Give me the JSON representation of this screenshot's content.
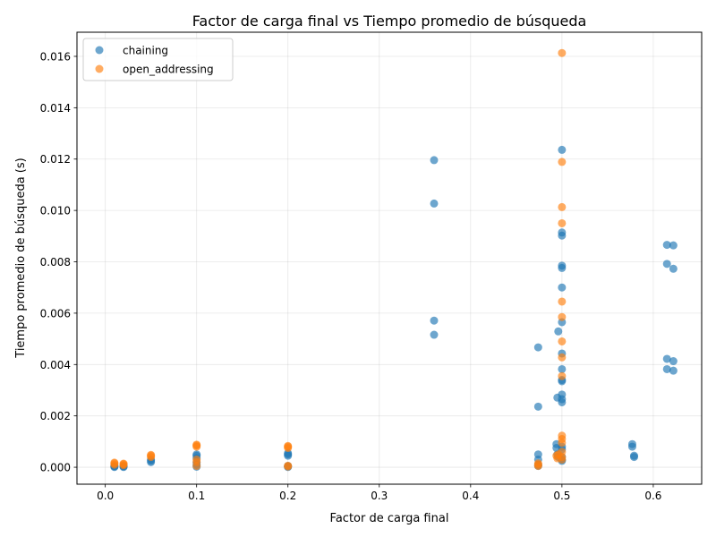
{
  "chart_data": {
    "type": "scatter",
    "title": "Factor de carga final vs Tiempo promedio de búsqueda",
    "xlabel": "Factor de carga final",
    "ylabel": "Tiempo promedio de búsqueda (s)",
    "xlim": [
      -0.031,
      0.653
    ],
    "ylim": [
      -0.00066,
      0.01694
    ],
    "xticks": [
      0.0,
      0.1,
      0.2,
      0.3,
      0.4,
      0.5,
      0.6
    ],
    "xtick_labels": [
      "0.0",
      "0.1",
      "0.2",
      "0.3",
      "0.4",
      "0.5",
      "0.6"
    ],
    "yticks": [
      0.0,
      0.002,
      0.004,
      0.006,
      0.008,
      0.01,
      0.012,
      0.014,
      0.016
    ],
    "ytick_labels": [
      "0.000",
      "0.002",
      "0.004",
      "0.006",
      "0.008",
      "0.010",
      "0.012",
      "0.014",
      "0.016"
    ],
    "grid": true,
    "legend_position": "top-left",
    "series": [
      {
        "name": "chaining",
        "color": "#1f77b4",
        "points": [
          [
            0.01,
            1e-05
          ],
          [
            0.01,
            3e-05
          ],
          [
            0.01,
            5e-05
          ],
          [
            0.02,
            1e-05
          ],
          [
            0.02,
            3e-05
          ],
          [
            0.02,
            5e-05
          ],
          [
            0.05,
            0.0002
          ],
          [
            0.05,
            0.00025
          ],
          [
            0.05,
            0.0003
          ],
          [
            0.1,
            2e-05
          ],
          [
            0.1,
            0.0001
          ],
          [
            0.1,
            0.0002
          ],
          [
            0.1,
            0.00035
          ],
          [
            0.1,
            0.00045
          ],
          [
            0.1,
            0.0005
          ],
          [
            0.2,
            1e-05
          ],
          [
            0.2,
            3e-05
          ],
          [
            0.2,
            5e-05
          ],
          [
            0.2,
            0.00045
          ],
          [
            0.2,
            0.0005
          ],
          [
            0.2,
            0.00055
          ],
          [
            0.36,
            0.01196
          ],
          [
            0.36,
            0.01027
          ],
          [
            0.36,
            0.00571
          ],
          [
            0.36,
            0.00516
          ],
          [
            0.474,
            0.00467
          ],
          [
            0.474,
            0.00236
          ],
          [
            0.474,
            0.0005
          ],
          [
            0.474,
            0.0003
          ],
          [
            0.474,
            0.0001
          ],
          [
            0.474,
            5e-05
          ],
          [
            0.496,
            0.00529
          ],
          [
            0.495,
            0.00271
          ],
          [
            0.494,
            0.0009
          ],
          [
            0.494,
            0.00075
          ],
          [
            0.495,
            0.0005
          ],
          [
            0.496,
            0.0004
          ],
          [
            0.5,
            0.01236
          ],
          [
            0.5,
            0.00914
          ],
          [
            0.5,
            0.00902
          ],
          [
            0.5,
            0.00785
          ],
          [
            0.5,
            0.00776
          ],
          [
            0.5,
            0.007
          ],
          [
            0.5,
            0.00565
          ],
          [
            0.5,
            0.00443
          ],
          [
            0.5,
            0.00382
          ],
          [
            0.5,
            0.0034
          ],
          [
            0.5,
            0.00335
          ],
          [
            0.5,
            0.00283
          ],
          [
            0.5,
            0.00265
          ],
          [
            0.5,
            0.00253
          ],
          [
            0.5,
            0.0008
          ],
          [
            0.5,
            0.0007
          ],
          [
            0.5,
            0.0004
          ],
          [
            0.5,
            0.0003
          ],
          [
            0.5,
            0.00025
          ],
          [
            0.577,
            0.0009
          ],
          [
            0.577,
            0.0008
          ],
          [
            0.579,
            0.00045
          ],
          [
            0.579,
            0.0004
          ],
          [
            0.615,
            0.00866
          ],
          [
            0.615,
            0.00792
          ],
          [
            0.615,
            0.00422
          ],
          [
            0.615,
            0.00382
          ],
          [
            0.622,
            0.00864
          ],
          [
            0.622,
            0.00773
          ],
          [
            0.622,
            0.00413
          ],
          [
            0.622,
            0.00376
          ]
        ]
      },
      {
        "name": "open_addressing",
        "color": "#ff7f0e",
        "points": [
          [
            0.01,
            0.0001
          ],
          [
            0.01,
            0.00015
          ],
          [
            0.01,
            0.00018
          ],
          [
            0.02,
            8e-05
          ],
          [
            0.02,
            0.00012
          ],
          [
            0.02,
            0.00014
          ],
          [
            0.05,
            0.0004
          ],
          [
            0.05,
            0.00045
          ],
          [
            0.05,
            0.00048
          ],
          [
            0.1,
            5e-05
          ],
          [
            0.1,
            0.0002
          ],
          [
            0.1,
            0.0003
          ],
          [
            0.1,
            0.0008
          ],
          [
            0.1,
            0.00085
          ],
          [
            0.1,
            0.00088
          ],
          [
            0.2,
            3e-05
          ],
          [
            0.2,
            6e-05
          ],
          [
            0.2,
            0.00075
          ],
          [
            0.2,
            0.0008
          ],
          [
            0.2,
            0.00083
          ],
          [
            0.474,
            5e-05
          ],
          [
            0.474,
            0.0001
          ],
          [
            0.474,
            0.00015
          ],
          [
            0.494,
            0.00045
          ],
          [
            0.495,
            0.00035
          ],
          [
            0.496,
            0.0005
          ],
          [
            0.5,
            0.01613
          ],
          [
            0.5,
            0.01189
          ],
          [
            0.5,
            0.01013
          ],
          [
            0.5,
            0.0095
          ],
          [
            0.5,
            0.00645
          ],
          [
            0.5,
            0.00585
          ],
          [
            0.5,
            0.0049
          ],
          [
            0.5,
            0.00428
          ],
          [
            0.5,
            0.00355
          ],
          [
            0.5,
            0.00123
          ],
          [
            0.5,
            0.0011
          ],
          [
            0.5,
            0.00095
          ],
          [
            0.5,
            0.0006
          ],
          [
            0.5,
            0.0004
          ],
          [
            0.5,
            0.0003
          ]
        ]
      }
    ]
  }
}
